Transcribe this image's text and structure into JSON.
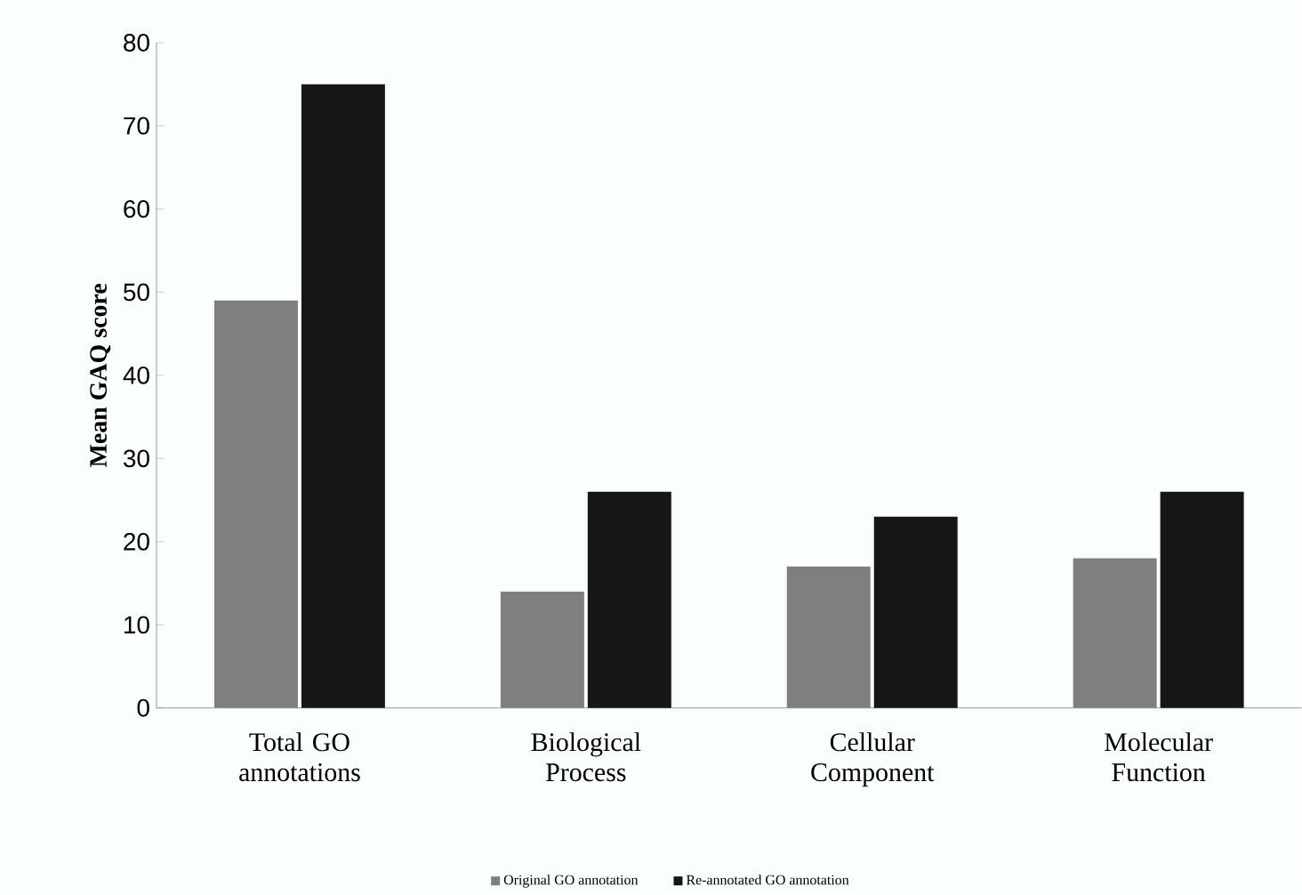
{
  "chart_data": {
    "type": "bar",
    "ylabel": "Mean GAQ score",
    "categories": [
      "Total GO annotations",
      "Biological Process",
      "Cellular Component",
      "Molecular Function"
    ],
    "series": [
      {
        "name": "Original GO annotation",
        "color": "#7f7f7f",
        "values": [
          49,
          14,
          17,
          18
        ]
      },
      {
        "name": "Re-annotated GO annotation",
        "color": "#161616",
        "values": [
          75,
          26,
          23,
          26
        ]
      }
    ],
    "ylim": [
      0,
      80
    ],
    "yticks": [
      0,
      10,
      20,
      30,
      40,
      50,
      60,
      70,
      80
    ],
    "grid": false,
    "legend": "bottom"
  }
}
